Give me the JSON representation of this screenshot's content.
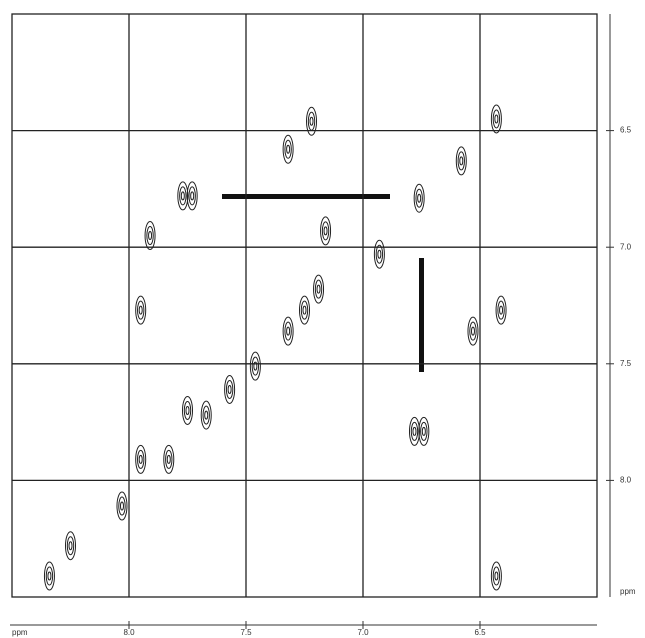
{
  "chart_data": {
    "type": "scatter",
    "x_label": "ppm",
    "y_label": "ppm",
    "xlim": [
      8.5,
      6.0
    ],
    "ylim": [
      6.0,
      8.5
    ],
    "xticks": [
      {
        "value": 8,
        "label": "8.0"
      },
      7.5,
      {
        "value": 7,
        "label": "7.0"
      },
      6.5
    ],
    "yticks": [
      6.5,
      {
        "value": 7,
        "label": "7.0"
      },
      7.5,
      {
        "value": 8,
        "label": "8.0"
      }
    ],
    "grid": true,
    "color": "#222222",
    "x": [
      7.77,
      7.73,
      7.22,
      7.32,
      6.43,
      6.58,
      6.76,
      7.16,
      6.93,
      7.19,
      7.25,
      7.32,
      7.46,
      6.53,
      6.41,
      6.78,
      6.74,
      7.75,
      7.83,
      7.95,
      8.03,
      8.25,
      8.34,
      6.43,
      7.95,
      7.91,
      7.57,
      7.67
    ],
    "y": [
      6.78,
      6.78,
      6.46,
      6.58,
      6.45,
      6.63,
      6.79,
      6.93,
      7.03,
      7.18,
      7.27,
      7.36,
      7.51,
      7.36,
      7.27,
      7.79,
      7.79,
      7.7,
      7.91,
      7.91,
      8.11,
      8.28,
      8.41,
      8.41,
      7.27,
      6.95,
      7.61,
      7.72
    ]
  }
}
